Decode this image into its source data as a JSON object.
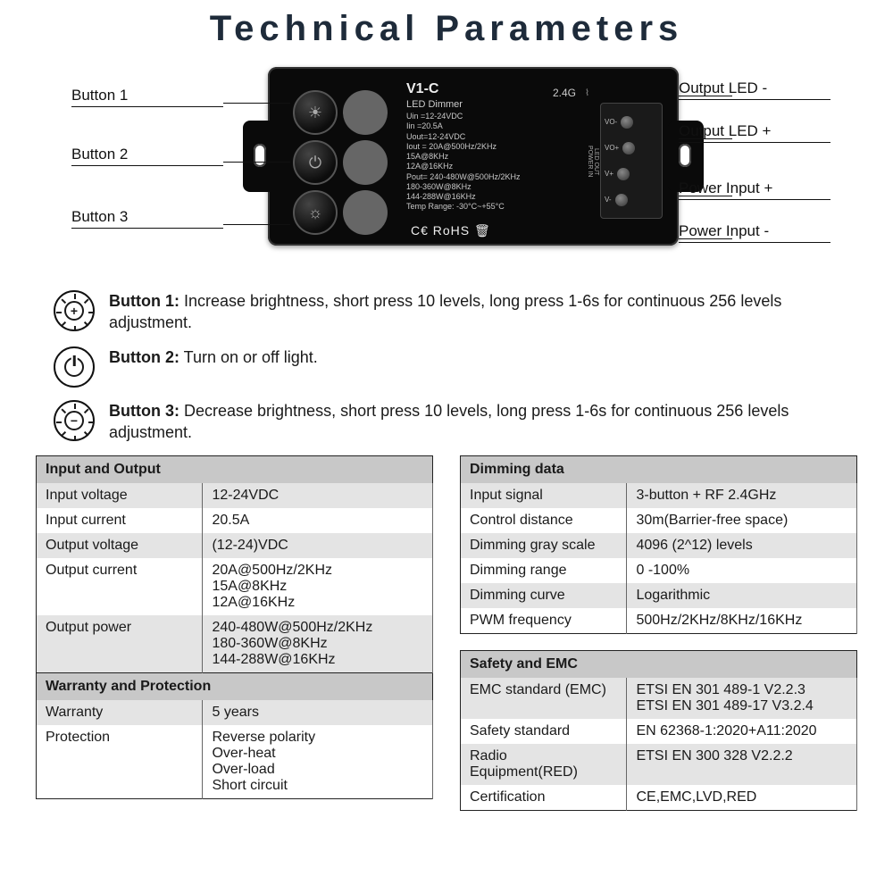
{
  "title": "Technical Parameters",
  "device": {
    "model": "V1-C",
    "subtitle": "LED Dimmer",
    "freq_label": "2.4G",
    "specs_text": "Uin =12-24VDC\nIin  =20.5A\nUout=12-24VDC\nIout = 20A@500Hz/2KHz\n         15A@8KHz\n         12A@16KHz\nPout= 240-480W@500Hz/2KHz\n         180-360W@8KHz\n         144-288W@16KHz\nTemp Range: -30°C~+55°C",
    "cert_text": "C€ RoHS 🗑",
    "terminals": [
      "VO-",
      "VO+",
      "V+",
      "V-"
    ],
    "terminal_group_top": "LED OUT",
    "terminal_group_bottom": "POWER IN"
  },
  "callouts": {
    "left": [
      "Button 1",
      "Button 2",
      "Button 3"
    ],
    "right": [
      "Output LED -",
      "Output LED +",
      "Power Input +",
      "Power Input -"
    ]
  },
  "button_descriptions": [
    {
      "label": "Button 1:",
      "text": "Increase brightness, short press 10 levels, long press 1-6s for continuous 256 levels adjustment.",
      "icon": "sun-plus"
    },
    {
      "label": "Button 2:",
      "text": "Turn on or off light.",
      "icon": "power"
    },
    {
      "label": "Button 3:",
      "text": "Decrease brightness, short press 10 levels, long press 1-6s for continuous 256 levels adjustment.",
      "icon": "sun-minus"
    }
  ],
  "tables": {
    "input_output": {
      "header": "Input and Output",
      "rows": [
        [
          "Input voltage",
          "12-24VDC",
          true
        ],
        [
          "Input current",
          "20.5A",
          false
        ],
        [
          "Output voltage",
          "(12-24)VDC",
          true
        ],
        [
          "Output current",
          "20A@500Hz/2KHz\n15A@8KHz\n12A@16KHz",
          false
        ],
        [
          "Output power",
          "240-480W@500Hz/2KHz\n180-360W@8KHz\n144-288W@16KHz",
          true
        ]
      ]
    },
    "warranty": {
      "header": "Warranty and Protection",
      "rows": [
        [
          "Warranty",
          "5 years",
          true
        ],
        [
          "Protection",
          "Reverse polarity\nOver-heat\nOver-load\nShort circuit",
          false
        ]
      ]
    },
    "dimming": {
      "header": "Dimming data",
      "rows": [
        [
          "Input signal",
          "3-button + RF 2.4GHz",
          true
        ],
        [
          "Control distance",
          "30m(Barrier-free space)",
          false
        ],
        [
          "Dimming gray scale",
          "4096 (2^12) levels",
          true
        ],
        [
          "Dimming range",
          "0 -100%",
          false
        ],
        [
          "Dimming curve",
          "Logarithmic",
          true
        ],
        [
          "PWM frequency",
          "500Hz/2KHz/8KHz/16KHz",
          false
        ]
      ]
    },
    "safety": {
      "header": "Safety and EMC",
      "rows": [
        [
          "EMC standard (EMC)",
          "ETSI EN 301 489-1 V2.2.3\nETSI EN 301 489-17 V3.2.4",
          true
        ],
        [
          "Safety standard",
          "EN 62368-1:2020+A11:2020",
          false
        ],
        [
          "Radio Equipment(RED)",
          "ETSI EN 300 328 V2.2.2",
          true
        ],
        [
          "Certification",
          "CE,EMC,LVD,RED",
          false
        ]
      ]
    }
  },
  "colors": {
    "title": "#1e2b3a",
    "device_bg": "#0a0a0a",
    "table_header_bg": "#c8c8c8",
    "table_alt_bg": "#e4e4e4",
    "border": "#222222"
  }
}
